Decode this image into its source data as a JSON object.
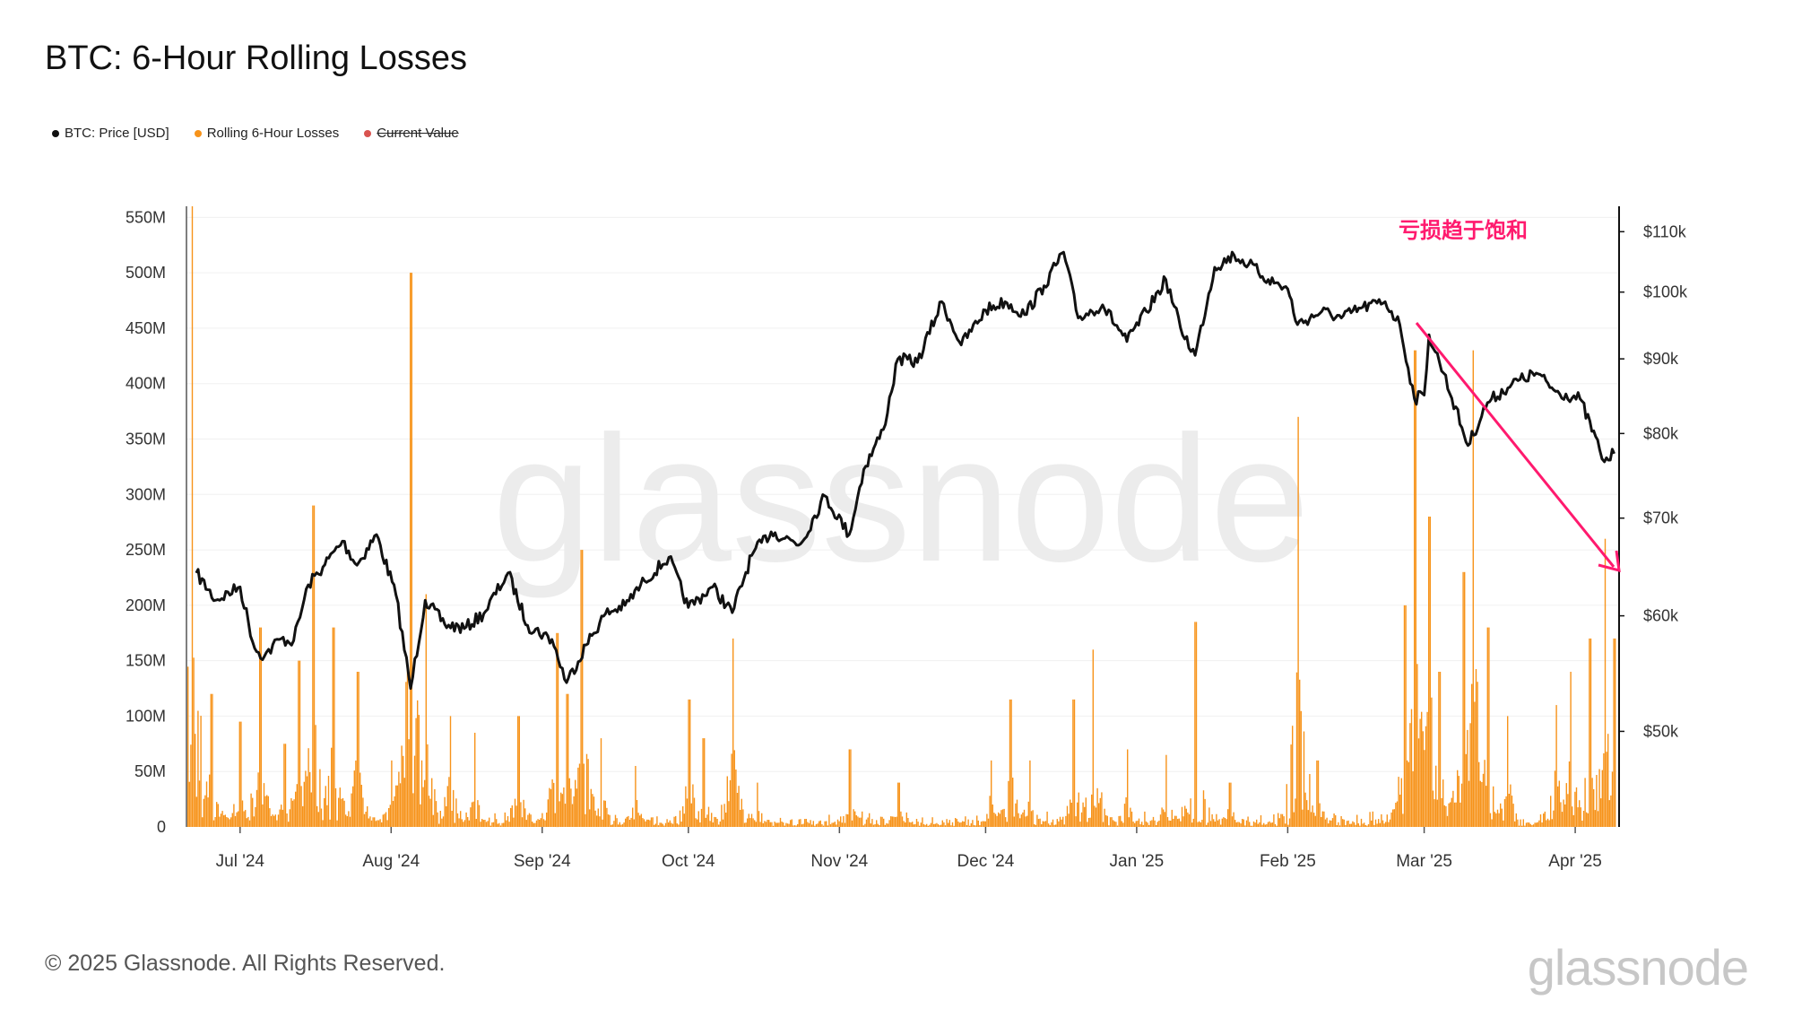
{
  "title": "BTC: 6-Hour Rolling Losses",
  "legend": [
    {
      "label": "BTC: Price [USD]",
      "color": "#111111",
      "strike": false
    },
    {
      "label": "Rolling 6-Hour Losses",
      "color": "#f7931a",
      "strike": false
    },
    {
      "label": "Current Value",
      "color": "#d9534f",
      "strike": true
    }
  ],
  "footer": "© 2025 Glassnode. All Rights Reserved.",
  "wordmark": "glassnode",
  "watermark": "glassnode",
  "annotation": {
    "text": "亏损趋于饱和",
    "color": "#ff1a6e"
  },
  "chart_data": {
    "type": "bar+line",
    "x_ticks": [
      "Jul '24",
      "Aug '24",
      "Sep '24",
      "Oct '24",
      "Nov '24",
      "Dec '24",
      "Jan '25",
      "Feb '25",
      "Mar '25",
      "Apr '25"
    ],
    "y_left": {
      "ticks": [
        "0",
        "50M",
        "100M",
        "150M",
        "200M",
        "250M",
        "300M",
        "350M",
        "400M",
        "450M",
        "500M",
        "550M"
      ],
      "range": [
        0,
        560000000
      ]
    },
    "y_right": {
      "ticks": [
        "$50k",
        "$60k",
        "$70k",
        "$80k",
        "$90k",
        "$100k",
        "$110k"
      ],
      "range": [
        43000,
        114500
      ],
      "scale": "log"
    },
    "grid": true,
    "series": [
      {
        "name": "BTC: Price [USD]",
        "axis": "right",
        "color": "#111111",
        "points": [
          [
            "2024-06-22",
            64200
          ],
          [
            "2024-06-26",
            61500
          ],
          [
            "2024-07-01",
            62800
          ],
          [
            "2024-07-04",
            57000
          ],
          [
            "2024-07-06",
            56300
          ],
          [
            "2024-07-09",
            57800
          ],
          [
            "2024-07-12",
            57700
          ],
          [
            "2024-07-15",
            63000
          ],
          [
            "2024-07-18",
            64800
          ],
          [
            "2024-07-22",
            67500
          ],
          [
            "2024-07-25",
            65000
          ],
          [
            "2024-07-29",
            68200
          ],
          [
            "2024-08-02",
            62000
          ],
          [
            "2024-08-05",
            53500
          ],
          [
            "2024-08-08",
            61500
          ],
          [
            "2024-08-12",
            59200
          ],
          [
            "2024-08-16",
            58800
          ],
          [
            "2024-08-20",
            60200
          ],
          [
            "2024-08-25",
            64200
          ],
          [
            "2024-08-29",
            59100
          ],
          [
            "2024-09-03",
            57800
          ],
          [
            "2024-09-06",
            54000
          ],
          [
            "2024-09-10",
            57300
          ],
          [
            "2024-09-14",
            60200
          ],
          [
            "2024-09-18",
            61000
          ],
          [
            "2024-09-22",
            63400
          ],
          [
            "2024-09-27",
            65800
          ],
          [
            "2024-10-01",
            60800
          ],
          [
            "2024-10-06",
            62800
          ],
          [
            "2024-10-10",
            60300
          ],
          [
            "2024-10-14",
            66000
          ],
          [
            "2024-10-18",
            68500
          ],
          [
            "2024-10-24",
            67200
          ],
          [
            "2024-10-29",
            72500
          ],
          [
            "2024-11-03",
            68200
          ],
          [
            "2024-11-06",
            75600
          ],
          [
            "2024-11-10",
            80500
          ],
          [
            "2024-11-13",
            90000
          ],
          [
            "2024-11-17",
            89500
          ],
          [
            "2024-11-22",
            98500
          ],
          [
            "2024-11-26",
            92000
          ],
          [
            "2024-12-01",
            97200
          ],
          [
            "2024-12-05",
            98500
          ],
          [
            "2024-12-09",
            96500
          ],
          [
            "2024-12-13",
            101000
          ],
          [
            "2024-12-17",
            106500
          ],
          [
            "2024-12-20",
            96000
          ],
          [
            "2024-12-25",
            98000
          ],
          [
            "2024-12-30",
            92500
          ],
          [
            "2025-01-03",
            97000
          ],
          [
            "2025-01-07",
            102000
          ],
          [
            "2025-01-10",
            94500
          ],
          [
            "2025-01-13",
            90500
          ],
          [
            "2025-01-17",
            104000
          ],
          [
            "2025-01-21",
            106000
          ],
          [
            "2025-01-24",
            104500
          ],
          [
            "2025-01-28",
            102000
          ],
          [
            "2025-02-01",
            100500
          ],
          [
            "2025-02-03",
            95000
          ],
          [
            "2025-02-08",
            97000
          ],
          [
            "2025-02-12",
            96000
          ],
          [
            "2025-02-16",
            97500
          ],
          [
            "2025-02-21",
            98500
          ],
          [
            "2025-02-24",
            95000
          ],
          [
            "2025-02-27",
            84500
          ],
          [
            "2025-03-01",
            85000
          ],
          [
            "2025-03-02",
            93500
          ],
          [
            "2025-03-05",
            88000
          ],
          [
            "2025-03-10",
            78500
          ],
          [
            "2025-03-14",
            84000
          ],
          [
            "2025-03-19",
            86500
          ],
          [
            "2025-03-24",
            88000
          ],
          [
            "2025-03-28",
            85500
          ],
          [
            "2025-04-02",
            84500
          ],
          [
            "2025-04-06",
            78000
          ],
          [
            "2025-04-07",
            76500
          ],
          [
            "2025-04-09",
            77500
          ]
        ]
      },
      {
        "name": "Rolling 6-Hour Losses",
        "axis": "left",
        "color": "#f7931a",
        "spikes": [
          [
            "2024-06-21",
            560000000
          ],
          [
            "2024-06-25",
            120000000
          ],
          [
            "2024-07-01",
            95000000
          ],
          [
            "2024-07-05",
            180000000
          ],
          [
            "2024-07-10",
            75000000
          ],
          [
            "2024-07-13",
            150000000
          ],
          [
            "2024-07-16",
            290000000
          ],
          [
            "2024-07-20",
            180000000
          ],
          [
            "2024-07-25",
            140000000
          ],
          [
            "2024-08-01",
            60000000
          ],
          [
            "2024-08-05",
            500000000
          ],
          [
            "2024-08-08",
            210000000
          ],
          [
            "2024-08-13",
            100000000
          ],
          [
            "2024-08-18",
            85000000
          ],
          [
            "2024-08-27",
            100000000
          ],
          [
            "2024-09-04",
            175000000
          ],
          [
            "2024-09-06",
            120000000
          ],
          [
            "2024-09-09",
            250000000
          ],
          [
            "2024-09-13",
            80000000
          ],
          [
            "2024-09-20",
            55000000
          ],
          [
            "2024-10-01",
            115000000
          ],
          [
            "2024-10-04",
            80000000
          ],
          [
            "2024-10-10",
            170000000
          ],
          [
            "2024-10-15",
            40000000
          ],
          [
            "2024-11-03",
            70000000
          ],
          [
            "2024-11-13",
            40000000
          ],
          [
            "2024-12-02",
            60000000
          ],
          [
            "2024-12-06",
            115000000
          ],
          [
            "2024-12-10",
            60000000
          ],
          [
            "2024-12-19",
            115000000
          ],
          [
            "2024-12-23",
            160000000
          ],
          [
            "2024-12-30",
            70000000
          ],
          [
            "2025-01-07",
            65000000
          ],
          [
            "2025-01-13",
            185000000
          ],
          [
            "2025-01-20",
            40000000
          ],
          [
            "2025-02-03",
            370000000
          ],
          [
            "2025-02-07",
            60000000
          ],
          [
            "2025-02-25",
            200000000
          ],
          [
            "2025-02-27",
            430000000
          ],
          [
            "2025-03-02",
            280000000
          ],
          [
            "2025-03-04",
            140000000
          ],
          [
            "2025-03-09",
            230000000
          ],
          [
            "2025-03-11",
            430000000
          ],
          [
            "2025-03-14",
            180000000
          ],
          [
            "2025-03-18",
            100000000
          ],
          [
            "2025-03-28",
            110000000
          ],
          [
            "2025-03-31",
            140000000
          ],
          [
            "2025-04-04",
            170000000
          ],
          [
            "2025-04-07",
            260000000
          ],
          [
            "2025-04-09",
            170000000
          ]
        ]
      }
    ]
  }
}
